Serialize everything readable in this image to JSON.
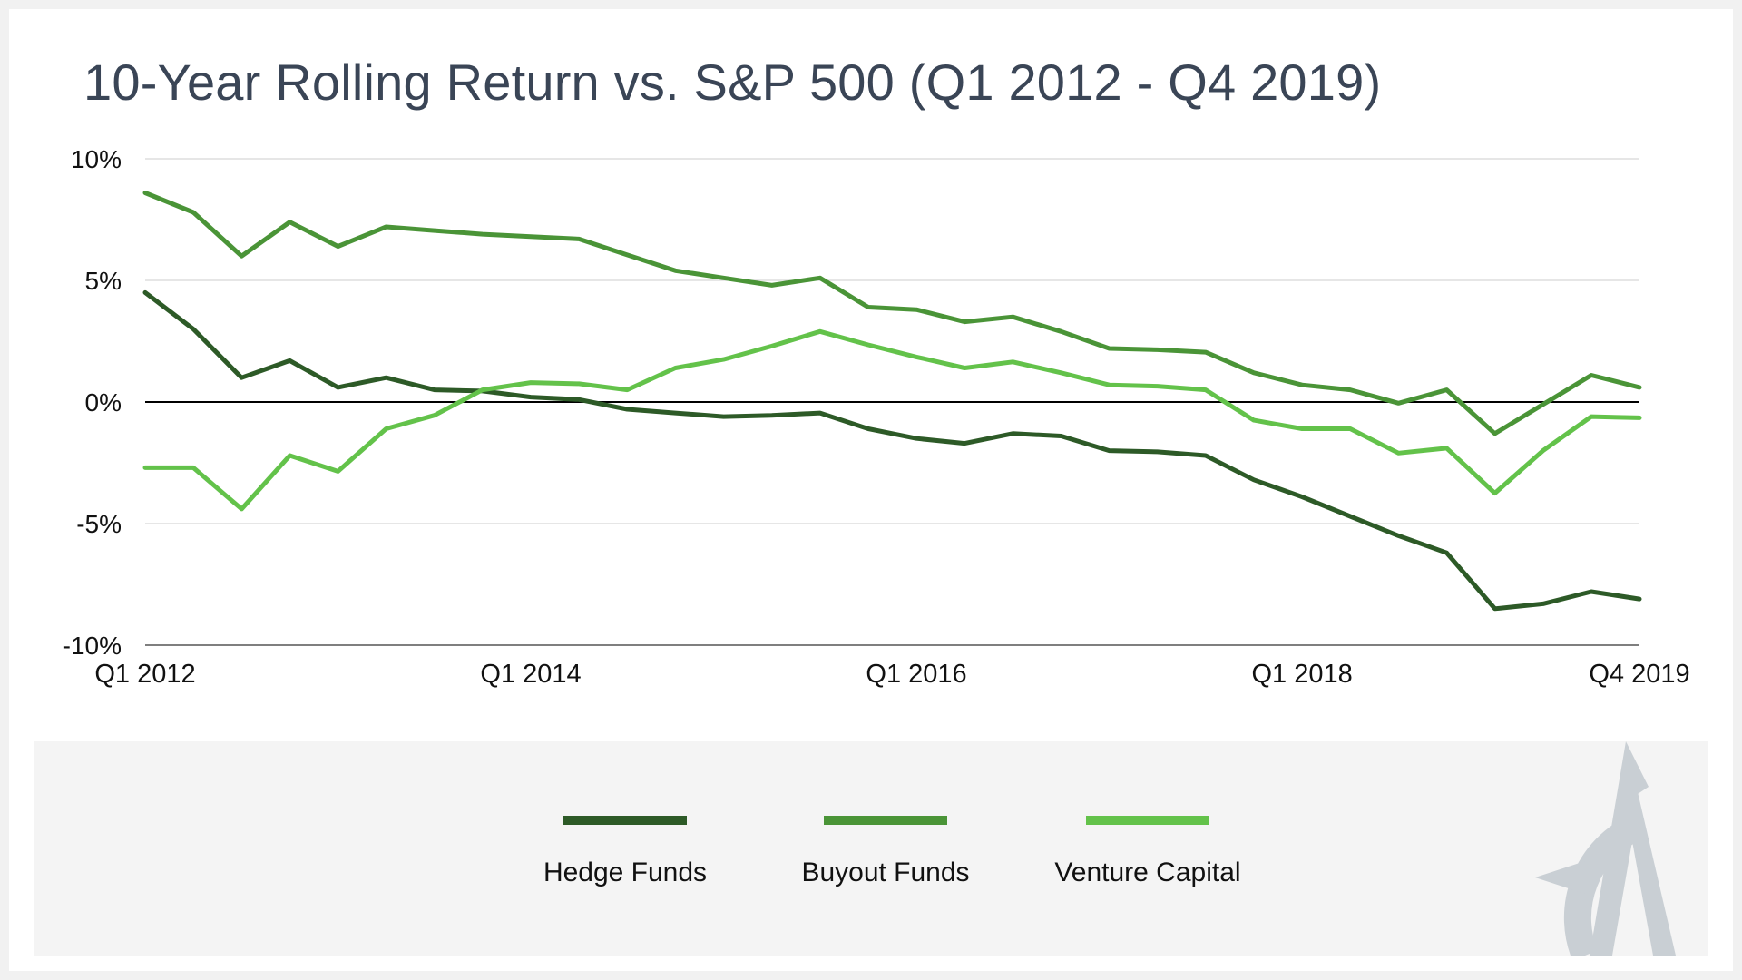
{
  "title": "10-Year Rolling Return vs. S&P 500 (Q1 2012 - Q4 2019)",
  "colors": {
    "hedge": "#2d5a27",
    "buyout": "#4a9437",
    "venture": "#63c24a",
    "grid": "#cccccc",
    "zero": "#000000",
    "axis": "#555555",
    "logo": "#c9cfd4"
  },
  "logo_icon": "compass-a-logo",
  "chart_data": {
    "type": "line",
    "title": "10-Year Rolling Return vs. S&P 500 (Q1 2012 - Q4 2019)",
    "xlabel": "",
    "ylabel": "",
    "x": [
      "Q1 2012",
      "Q2 2012",
      "Q3 2012",
      "Q4 2012",
      "Q1 2013",
      "Q2 2013",
      "Q3 2013",
      "Q4 2013",
      "Q1 2014",
      "Q2 2014",
      "Q3 2014",
      "Q4 2014",
      "Q1 2015",
      "Q2 2015",
      "Q3 2015",
      "Q4 2015",
      "Q1 2016",
      "Q2 2016",
      "Q3 2016",
      "Q4 2016",
      "Q1 2017",
      "Q2 2017",
      "Q3 2017",
      "Q4 2017",
      "Q1 2018",
      "Q2 2018",
      "Q3 2018",
      "Q4 2018",
      "Q1 2019",
      "Q2 2019",
      "Q3 2019",
      "Q4 2019"
    ],
    "x_tick_labels": [
      "Q1 2012",
      "Q1 2014",
      "Q1 2016",
      "Q1 2018",
      "Q4 2019"
    ],
    "x_tick_positions": [
      0,
      8,
      16,
      24,
      31
    ],
    "y_ticks": [
      10,
      5,
      0,
      -5,
      -10
    ],
    "y_tick_labels": [
      "10%",
      "5%",
      "0%",
      "-5%",
      "-10%"
    ],
    "ylim": [
      -10,
      10
    ],
    "grid": true,
    "zero_line": true,
    "legend": "bottom",
    "series": [
      {
        "name": "Hedge Funds",
        "color": "#2d5a27",
        "values": [
          4.5,
          3.0,
          1.0,
          1.7,
          0.6,
          1.0,
          0.5,
          0.45,
          0.2,
          0.1,
          -0.3,
          -0.45,
          -0.6,
          -0.55,
          -0.45,
          -1.1,
          -1.5,
          -1.7,
          -1.3,
          -1.4,
          -2.0,
          -2.05,
          -2.2,
          -3.2,
          -3.9,
          -4.7,
          -5.5,
          -6.2,
          -8.5,
          -8.3,
          -7.8,
          -8.1
        ]
      },
      {
        "name": "Buyout Funds",
        "color": "#4a9437",
        "values": [
          8.6,
          7.8,
          6.0,
          7.4,
          6.4,
          7.2,
          7.05,
          6.9,
          6.8,
          6.7,
          6.05,
          5.4,
          5.1,
          4.8,
          5.1,
          3.9,
          3.8,
          3.3,
          3.5,
          2.9,
          2.2,
          2.15,
          2.05,
          1.2,
          0.7,
          0.5,
          -0.05,
          0.5,
          -1.3,
          -0.1,
          1.1,
          0.6
        ]
      },
      {
        "name": "Venture Capital",
        "color": "#63c24a",
        "values": [
          -2.7,
          -2.7,
          -4.4,
          -2.2,
          -2.85,
          -1.1,
          -0.55,
          0.5,
          0.8,
          0.75,
          0.5,
          1.4,
          1.75,
          2.3,
          2.9,
          2.35,
          1.85,
          1.4,
          1.65,
          1.2,
          0.7,
          0.65,
          0.5,
          -0.75,
          -1.1,
          -1.1,
          -2.1,
          -1.9,
          -3.75,
          -2.0,
          -0.6,
          -0.65
        ]
      }
    ]
  }
}
